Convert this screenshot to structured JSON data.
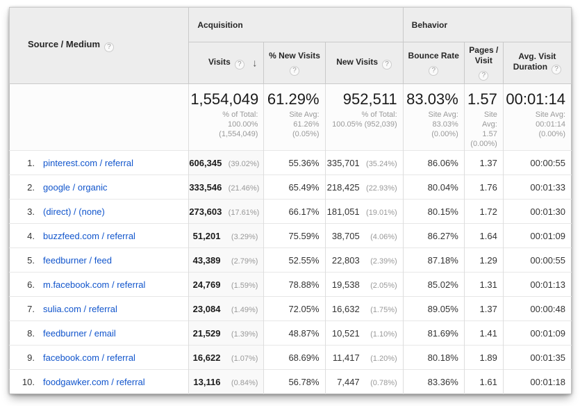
{
  "header": {
    "source_medium": "Source / Medium",
    "acquisition": "Acquisition",
    "behavior": "Behavior",
    "help_glyph": "?",
    "sort_arrow_glyph": "↓",
    "metrics": {
      "visits": "Visits",
      "pct_new_visits": "% New Visits",
      "new_visits": "New Visits",
      "bounce_rate": "Bounce Rate",
      "pages_visit": "Pages /\nVisit",
      "avg_visit_line1": "Avg. Visit",
      "avg_visit_line2": "Duration"
    }
  },
  "summary": {
    "visits": "1,554,049",
    "visits_sub": "% of Total:\n100.00%\n(1,554,049)",
    "pct_new_visits": "61.29%",
    "pct_new_visits_sub": "Site Avg:\n61.26%\n(0.05%)",
    "new_visits": "952,511",
    "new_visits_sub": "% of Total:\n100.05% (952,039)",
    "bounce_rate": "83.03%",
    "bounce_rate_sub": "Site Avg:\n83.03%\n(0.00%)",
    "pages_visit": "1.57",
    "pages_visit_sub": "Site\nAvg:\n1.57\n(0.00%)",
    "avg_duration": "00:01:14",
    "avg_duration_sub": "Site Avg:\n00:01:14\n(0.00%)"
  },
  "rows": [
    {
      "rank": "1.",
      "source": "pinterest.com / referral",
      "visits": "606,345",
      "visits_share": "(39.02%)",
      "pct_new_visits": "55.36%",
      "new_visits": "335,701",
      "new_visits_share": "(35.24%)",
      "bounce_rate": "86.06%",
      "pages_visit": "1.37",
      "avg_duration": "00:00:55"
    },
    {
      "rank": "2.",
      "source": "google / organic",
      "visits": "333,546",
      "visits_share": "(21.46%)",
      "pct_new_visits": "65.49%",
      "new_visits": "218,425",
      "new_visits_share": "(22.93%)",
      "bounce_rate": "80.04%",
      "pages_visit": "1.76",
      "avg_duration": "00:01:33"
    },
    {
      "rank": "3.",
      "source": "(direct) / (none)",
      "visits": "273,603",
      "visits_share": "(17.61%)",
      "pct_new_visits": "66.17%",
      "new_visits": "181,051",
      "new_visits_share": "(19.01%)",
      "bounce_rate": "80.15%",
      "pages_visit": "1.72",
      "avg_duration": "00:01:30"
    },
    {
      "rank": "4.",
      "source": "buzzfeed.com / referral",
      "visits": "51,201",
      "visits_share": "(3.29%)",
      "pct_new_visits": "75.59%",
      "new_visits": "38,705",
      "new_visits_share": "(4.06%)",
      "bounce_rate": "86.27%",
      "pages_visit": "1.64",
      "avg_duration": "00:01:09"
    },
    {
      "rank": "5.",
      "source": "feedburner / feed",
      "visits": "43,389",
      "visits_share": "(2.79%)",
      "pct_new_visits": "52.55%",
      "new_visits": "22,803",
      "new_visits_share": "(2.39%)",
      "bounce_rate": "87.18%",
      "pages_visit": "1.29",
      "avg_duration": "00:00:55"
    },
    {
      "rank": "6.",
      "source": "m.facebook.com / referral",
      "visits": "24,769",
      "visits_share": "(1.59%)",
      "pct_new_visits": "78.88%",
      "new_visits": "19,538",
      "new_visits_share": "(2.05%)",
      "bounce_rate": "85.02%",
      "pages_visit": "1.31",
      "avg_duration": "00:01:13"
    },
    {
      "rank": "7.",
      "source": "sulia.com / referral",
      "visits": "23,084",
      "visits_share": "(1.49%)",
      "pct_new_visits": "72.05%",
      "new_visits": "16,632",
      "new_visits_share": "(1.75%)",
      "bounce_rate": "89.05%",
      "pages_visit": "1.37",
      "avg_duration": "00:00:48"
    },
    {
      "rank": "8.",
      "source": "feedburner / email",
      "visits": "21,529",
      "visits_share": "(1.39%)",
      "pct_new_visits": "48.87%",
      "new_visits": "10,521",
      "new_visits_share": "(1.10%)",
      "bounce_rate": "81.69%",
      "pages_visit": "1.41",
      "avg_duration": "00:01:09"
    },
    {
      "rank": "9.",
      "source": "facebook.com / referral",
      "visits": "16,622",
      "visits_share": "(1.07%)",
      "pct_new_visits": "68.69%",
      "new_visits": "11,417",
      "new_visits_share": "(1.20%)",
      "bounce_rate": "80.18%",
      "pages_visit": "1.89",
      "avg_duration": "00:01:35"
    },
    {
      "rank": "10.",
      "source": "foodgawker.com / referral",
      "visits": "13,116",
      "visits_share": "(0.84%)",
      "pct_new_visits": "56.78%",
      "new_visits": "7,447",
      "new_visits_share": "(0.78%)",
      "bounce_rate": "83.36%",
      "pages_visit": "1.61",
      "avg_duration": "00:01:18"
    }
  ]
}
